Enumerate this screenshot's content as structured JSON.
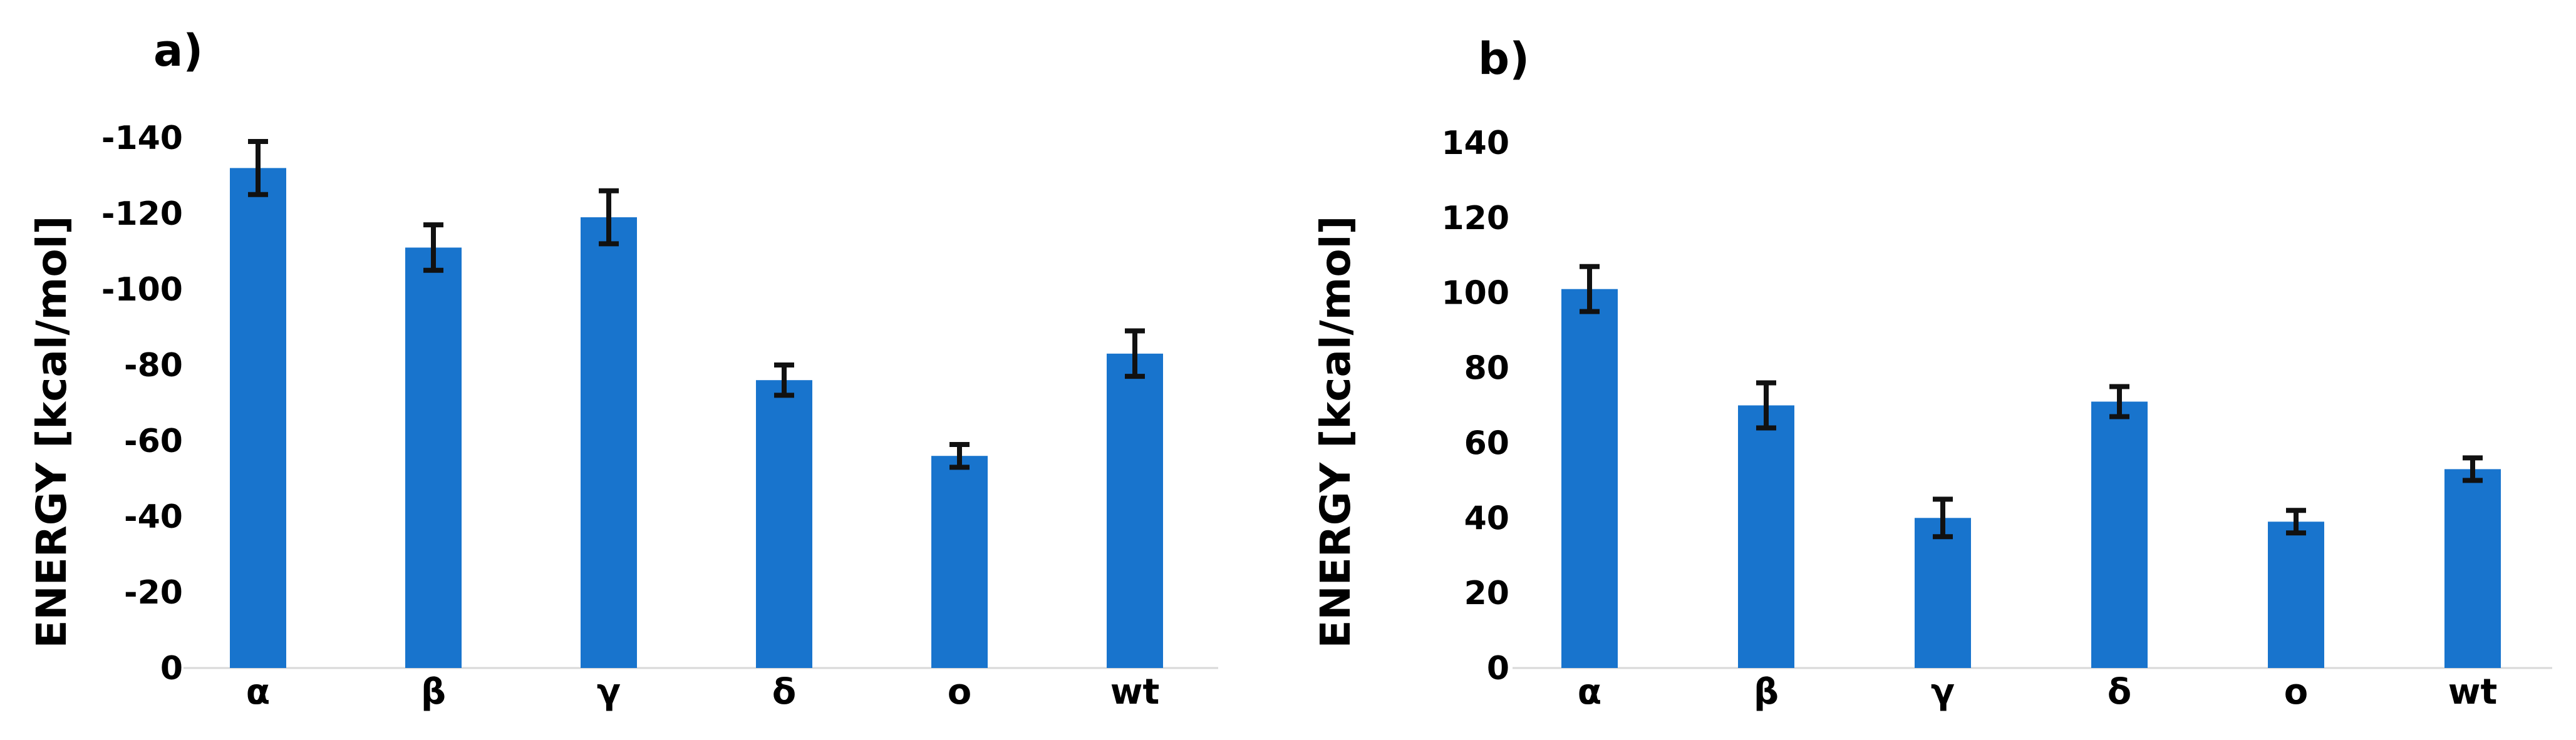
{
  "chart_data": [
    {
      "type": "bar",
      "panel_label": "a)",
      "title": "",
      "xlabel": "",
      "ylabel": "ENERGY [kcal/mol]",
      "categories": [
        "α",
        "β",
        "γ",
        "δ",
        "o",
        "wt"
      ],
      "values": [
        -132,
        -111,
        -119,
        -76,
        -56,
        -83
      ],
      "errors": [
        7,
        6,
        7,
        4,
        3,
        6
      ],
      "yticks": [
        0,
        -20,
        -40,
        -60,
        -80,
        -100,
        -120,
        -140
      ],
      "ytick_labels": [
        "0",
        "-20",
        "-40",
        "-60",
        "-80",
        "-100",
        "-120",
        "-140"
      ],
      "ylim": [
        0,
        -140
      ],
      "inverted_axis": true,
      "grid": false,
      "bar_color": "#1874CD"
    },
    {
      "type": "bar",
      "panel_label": "b)",
      "title": "",
      "xlabel": "",
      "ylabel": "ENERGY [kcal/mol]",
      "categories": [
        "α",
        "β",
        "γ",
        "δ",
        "o",
        "wt"
      ],
      "values": [
        101,
        70,
        40,
        71,
        39,
        53
      ],
      "errors": [
        6,
        6,
        5,
        4,
        3,
        3
      ],
      "yticks": [
        0,
        20,
        40,
        60,
        80,
        100,
        120,
        140
      ],
      "ytick_labels": [
        "0",
        "20",
        "40",
        "60",
        "80",
        "100",
        "120",
        "140"
      ],
      "ylim": [
        0,
        140
      ],
      "inverted_axis": false,
      "grid": false,
      "bar_color": "#1874CD"
    }
  ]
}
